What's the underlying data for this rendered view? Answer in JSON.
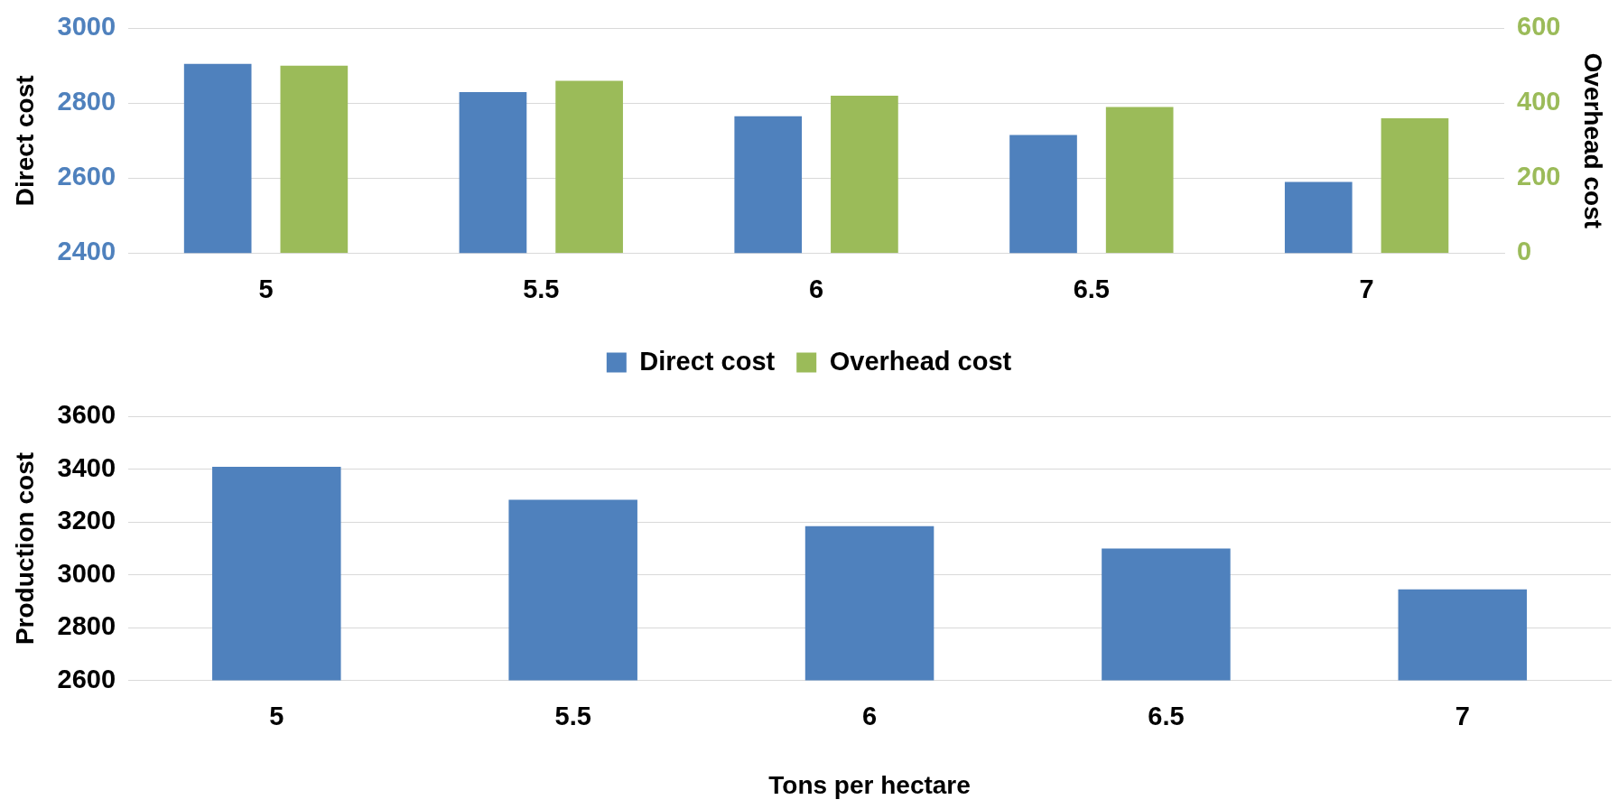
{
  "chart_data": [
    {
      "type": "bar",
      "categories": [
        "5",
        "5.5",
        "6",
        "6.5",
        "7"
      ],
      "ylabel": "Direct cost",
      "y2label": "Overhead cost",
      "series": [
        {
          "name": "Direct cost",
          "color": "#4f81bd",
          "values": [
            2905,
            2830,
            2765,
            2715,
            2590
          ]
        },
        {
          "name": "Overhead cost",
          "color": "#9bbb59",
          "axis": "y2",
          "values": [
            500,
            460,
            420,
            390,
            360
          ]
        }
      ],
      "ylim": [
        2400,
        3000
      ],
      "yticks": [
        2400,
        2600,
        2800,
        3000
      ],
      "y2lim": [
        0,
        600
      ],
      "y2ticks": [
        0,
        200,
        400,
        600
      ],
      "grid": "y",
      "legend": "bottom"
    },
    {
      "type": "bar",
      "categories": [
        "5",
        "5.5",
        "6",
        "6.5",
        "7"
      ],
      "xlabel": "Tons per hectare",
      "ylabel": "Production cost",
      "series": [
        {
          "color": "#4f81bd",
          "values": [
            3410,
            3285,
            3185,
            3100,
            2945
          ]
        }
      ],
      "ylim": [
        2600,
        3600
      ],
      "yticks": [
        2600,
        2800,
        3000,
        3200,
        3400,
        3600
      ],
      "grid": "y"
    }
  ]
}
